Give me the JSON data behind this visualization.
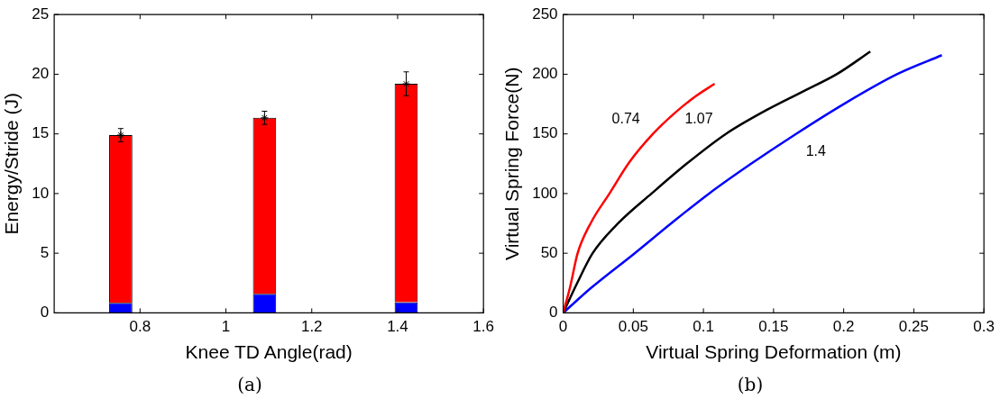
{
  "chart_data": [
    {
      "type": "bar",
      "xlabel": "Knee TD Angle(rad)",
      "ylabel": "Energy/Stride (J)",
      "xlim": [
        0.6,
        1.6
      ],
      "xticks": [
        0.8,
        1,
        1.2,
        1.4,
        1.6
      ],
      "ylim": [
        0,
        25
      ],
      "yticks": [
        0,
        5,
        10,
        15,
        20,
        25
      ],
      "stacked": true,
      "grid": false,
      "legend": false,
      "title": "(a)",
      "series": [
        {
          "color": "#0000ff",
          "x": [
            0.755,
            1.09,
            1.42
          ],
          "values": [
            0.85,
            1.6,
            0.9
          ]
        },
        {
          "color": "#ff0000",
          "x": [
            0.755,
            1.09,
            1.42
          ],
          "values": [
            14.05,
            14.75,
            18.3
          ]
        },
        {
          "type": "scatter",
          "marker": "cross",
          "color": "#000000",
          "x": [
            0.755,
            1.09,
            1.42
          ],
          "values": [
            14.9,
            16.35,
            19.2
          ],
          "errors": [
            0.55,
            0.55,
            1
          ]
        }
      ]
    },
    {
      "type": "line",
      "xlabel": "Virtual Spring Deformation (m)",
      "ylabel": "Virtual Spring Force(N)",
      "xlim": [
        0,
        0.3
      ],
      "xticks": [
        0,
        0.05,
        0.1,
        0.15,
        0.2,
        0.25,
        0.3
      ],
      "ylim": [
        0,
        250
      ],
      "yticks": [
        0,
        50,
        100,
        150,
        200,
        250
      ],
      "grid": false,
      "legend": false,
      "marker": "none",
      "title": "(b)",
      "annotations": [
        "0.74",
        "1.07",
        "1.4"
      ],
      "series": [
        {
          "color": "#ff0000",
          "x": [
            0,
            0.005,
            0.0103,
            0.02,
            0.033,
            0.047,
            0.064,
            0.08,
            0.095,
            0.108
          ],
          "values": [
            0,
            22,
            50,
            76,
            100,
            126,
            150,
            168,
            182,
            192
          ]
        },
        {
          "color": "#000000",
          "x": [
            0,
            0.01,
            0.021,
            0.04,
            0.063,
            0.088,
            0.116,
            0.145,
            0.17,
            0.195,
            0.219
          ],
          "values": [
            0,
            25,
            50,
            76,
            100,
            125,
            150,
            170,
            185,
            200,
            219
          ]
        },
        {
          "color": "#0000ff",
          "x": [
            0,
            0.02,
            0.051,
            0.077,
            0.104,
            0.134,
            0.166,
            0.2,
            0.238,
            0.27
          ],
          "values": [
            0,
            21,
            50,
            75,
            100,
            125,
            150,
            175,
            200,
            216
          ]
        }
      ]
    }
  ]
}
